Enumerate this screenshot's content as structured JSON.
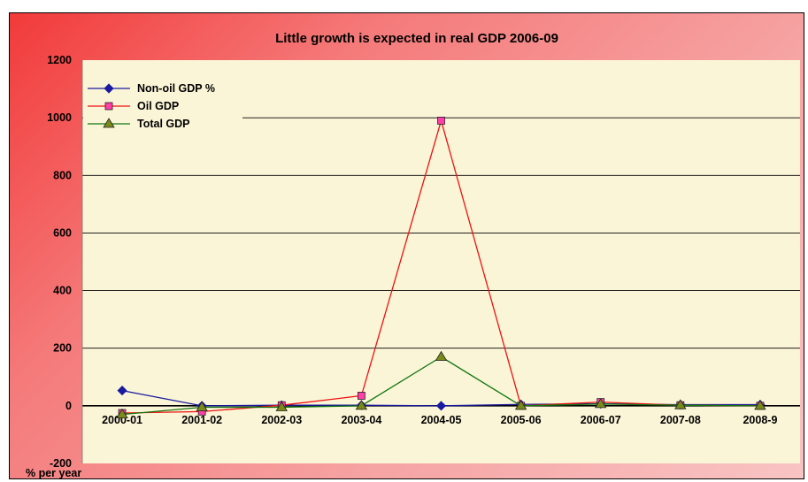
{
  "chart_data": {
    "type": "line",
    "title": "Little growth is expected in real GDP 2006-09",
    "ylabel": "% per year",
    "xlabel": "",
    "categories": [
      "2000-01",
      "2001-02",
      "2002-03",
      "2003-04",
      "2004-05",
      "2005-06",
      "2006-07",
      "2007-08",
      "2008-9"
    ],
    "ylim": [
      -200,
      1200
    ],
    "yticks": [
      -200,
      0,
      200,
      400,
      600,
      800,
      1000,
      1200
    ],
    "grid": true,
    "legend_position": "top-left",
    "plot_background": "#fbf5d7",
    "series": [
      {
        "name": "Non-oil GDP %",
        "color": "#1a1aa0",
        "marker": "diamond",
        "marker_fill": "#1a1aa0",
        "values": [
          53,
          0,
          2,
          2,
          0,
          5,
          7,
          4,
          4
        ]
      },
      {
        "name": "Oil GDP",
        "color": "#ee1111",
        "marker": "square",
        "marker_fill": "#ff3ea8",
        "values": [
          -25,
          -20,
          2,
          35,
          990,
          0,
          13,
          2,
          0
        ]
      },
      {
        "name": "Total GDP",
        "color": "#117711",
        "marker": "triangle",
        "marker_fill": "#7a8a1a",
        "values": [
          -30,
          -5,
          -5,
          0,
          170,
          0,
          6,
          2,
          0
        ]
      }
    ]
  }
}
